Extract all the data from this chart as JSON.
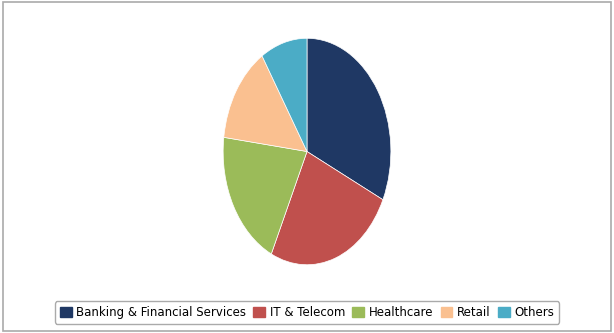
{
  "labels": [
    "Banking & Financial Services",
    "IT & Telecom",
    "Healthcare",
    "Retail",
    "Others"
  ],
  "values": [
    32,
    25,
    20,
    14,
    9
  ],
  "colors": [
    "#1F3864",
    "#C0504D",
    "#9BBB59",
    "#FAC090",
    "#4BACC6"
  ],
  "legend_fontsize": 8.5,
  "figure_bg": "#ffffff",
  "border_color": "#aaaaaa",
  "startangle": 90
}
